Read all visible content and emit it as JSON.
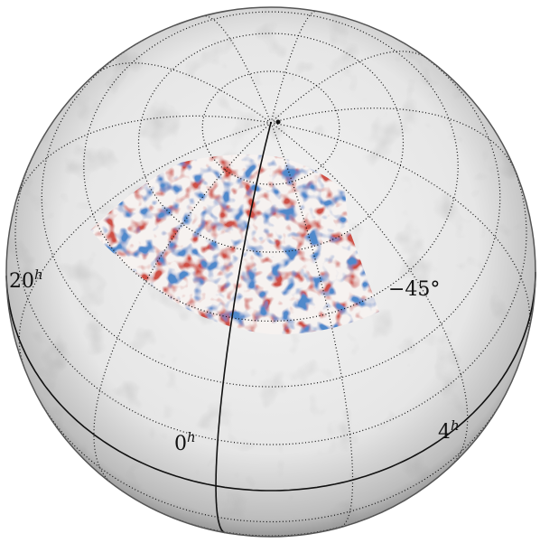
{
  "labels": {
    "ra": [
      {
        "hour": "20",
        "unit": "h"
      },
      {
        "hour": "0",
        "unit": "h"
      },
      {
        "hour": "4",
        "unit": "h"
      }
    ],
    "dec": "−45°"
  }
}
